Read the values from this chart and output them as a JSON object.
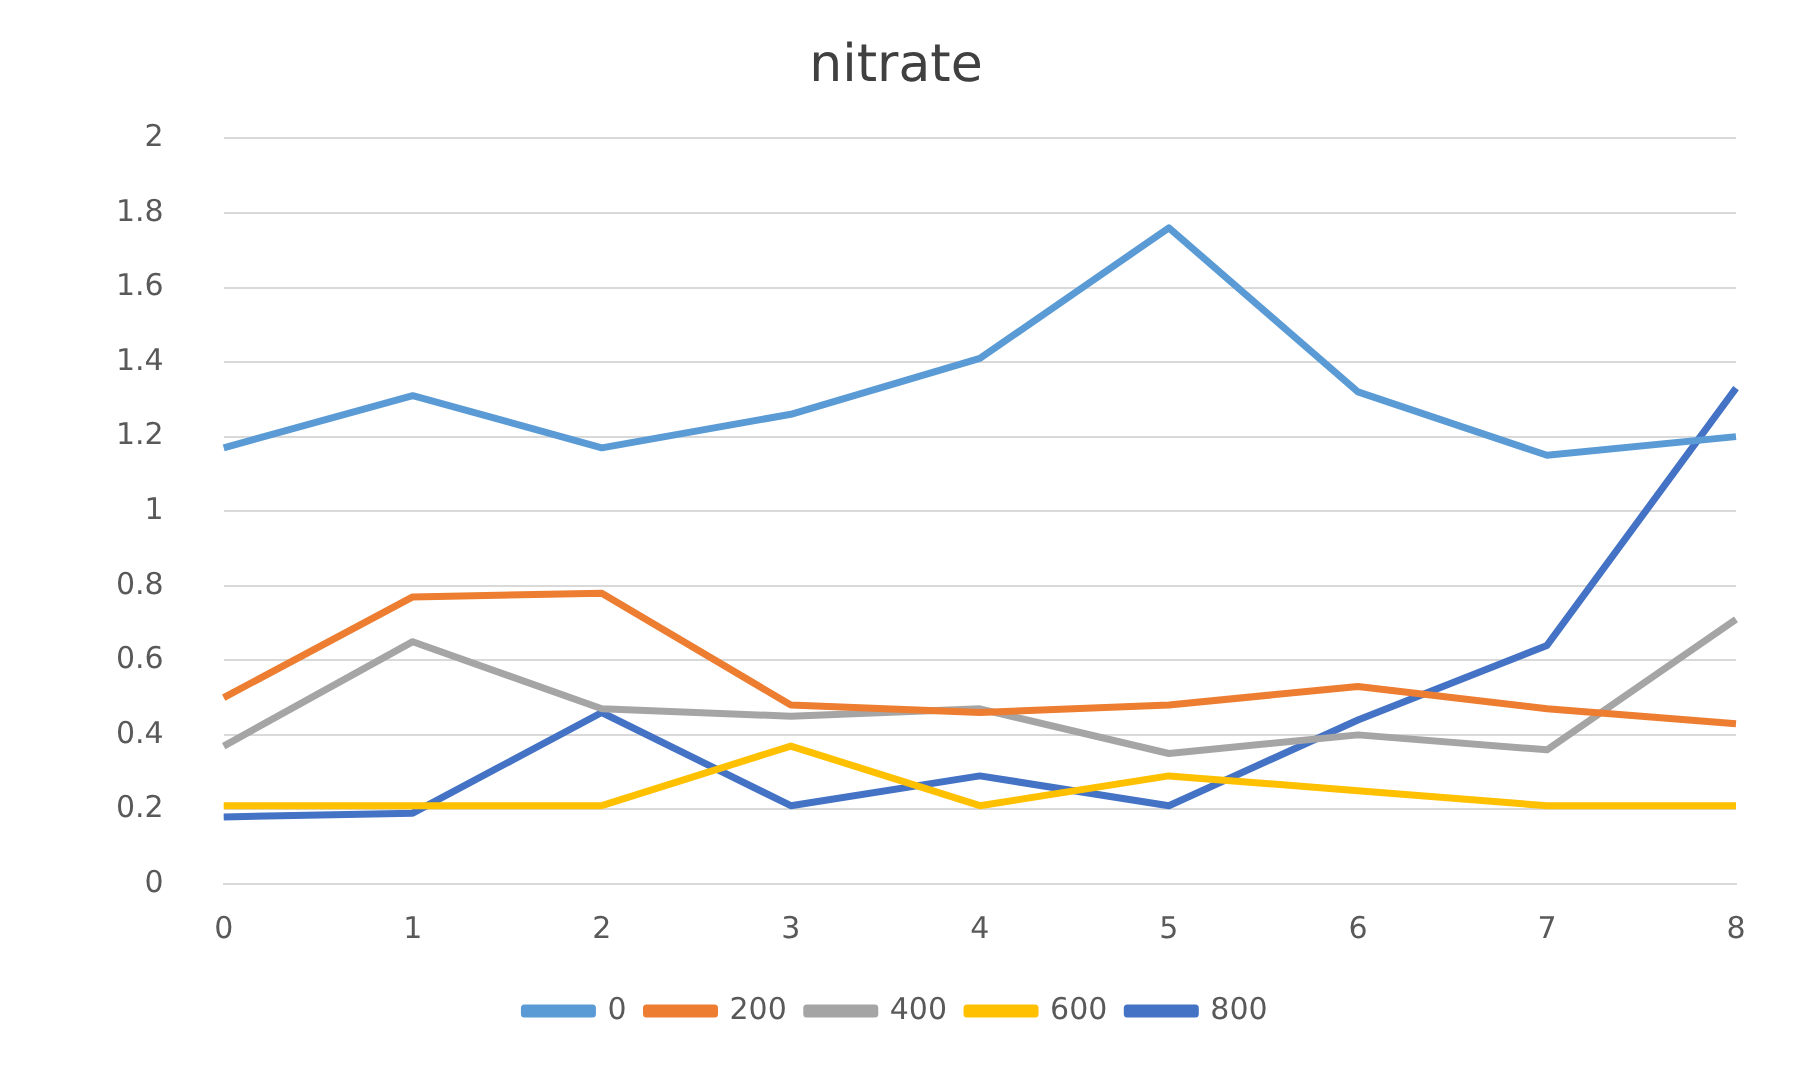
{
  "chart_data": {
    "type": "line",
    "title": "nitrate",
    "categories": [
      "0",
      "1",
      "2",
      "3",
      "4",
      "5",
      "6",
      "7",
      "8"
    ],
    "series": [
      {
        "name": "0",
        "color": "#5b9bd5",
        "values": [
          1.17,
          1.31,
          1.17,
          1.26,
          1.41,
          1.76,
          1.32,
          1.15,
          1.2
        ]
      },
      {
        "name": "200",
        "color": "#ed7d31",
        "values": [
          0.5,
          0.77,
          0.78,
          0.48,
          0.46,
          0.48,
          0.53,
          0.47,
          0.43
        ]
      },
      {
        "name": "400",
        "color": "#a5a5a5",
        "values": [
          0.37,
          0.65,
          0.47,
          0.45,
          0.47,
          0.35,
          0.4,
          0.36,
          0.71
        ]
      },
      {
        "name": "600",
        "color": "#ffc000",
        "values": [
          0.21,
          0.21,
          0.21,
          0.37,
          0.21,
          0.29,
          0.25,
          0.21,
          0.21
        ]
      },
      {
        "name": "800",
        "color": "#4472c4",
        "values": [
          0.18,
          0.19,
          0.46,
          0.21,
          0.29,
          0.21,
          0.44,
          0.64,
          1.33
        ]
      }
    ],
    "ylim": [
      0,
      2
    ],
    "yticks": [
      0,
      0.2,
      0.4,
      0.6,
      0.8,
      1,
      1.2,
      1.4,
      1.6,
      1.8,
      2
    ],
    "grid": "y",
    "legend": "bottom",
    "marker": "none",
    "line_style": "solid"
  }
}
